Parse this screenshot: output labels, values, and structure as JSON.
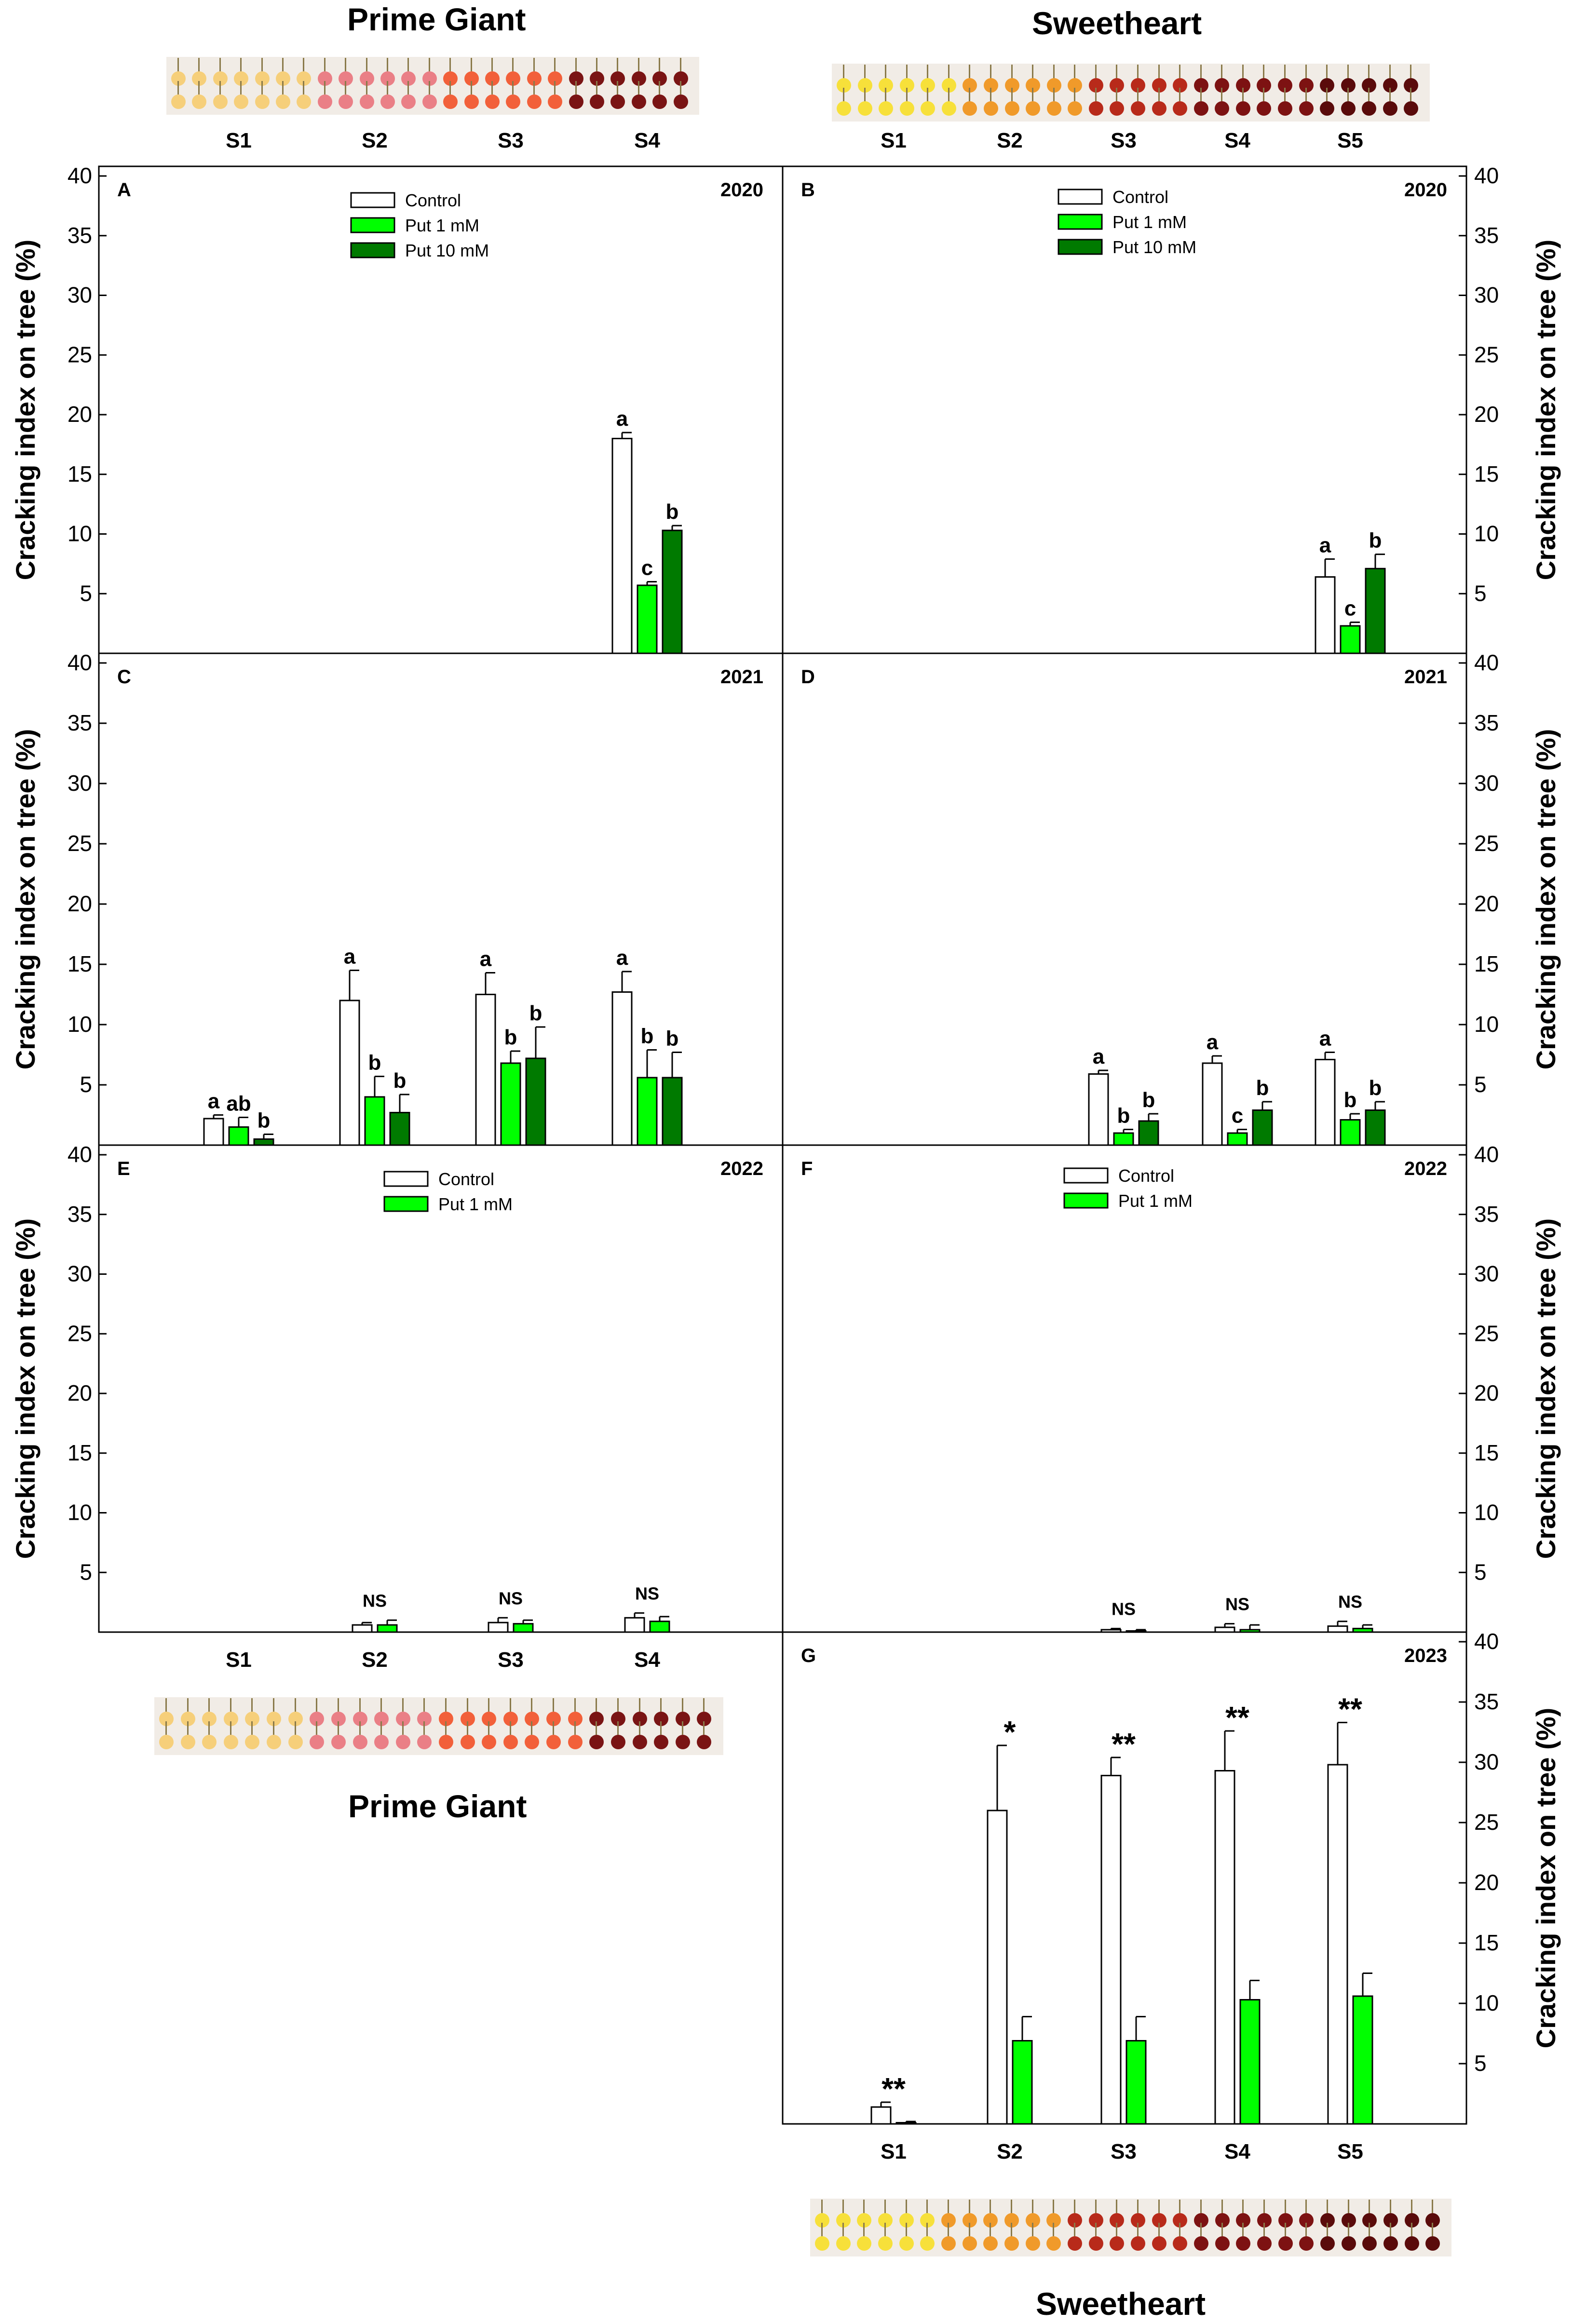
{
  "varieties": {
    "left": "Prime Giant",
    "right": "Sweetheart"
  },
  "y_axis_label": "Cracking index on tree (%)",
  "legend": {
    "control": "Control",
    "put1": "Put 1 mM",
    "put10": "Put 10 mM",
    "put1_spaced": "Put 1  mM"
  },
  "colors": {
    "control": "#ffffff",
    "put1": "#00ff00",
    "put10": "#007a00",
    "axis": "#000000"
  },
  "photo_strips": {
    "prime_giant": [
      "#f6cf7a",
      "#ea7f86",
      "#f2603a",
      "#7a1414"
    ],
    "sweetheart": [
      "#f7e03a",
      "#f09a2a",
      "#b82a1a",
      "#7d1212",
      "#5a0b0b"
    ]
  },
  "chart_data": [
    {
      "panel": "A",
      "year": "2020",
      "type": "bar",
      "variety": "Prime Giant",
      "categories": [
        "S1",
        "S2",
        "S3",
        "S4"
      ],
      "show_xticks": false,
      "ylim": [
        0,
        40
      ],
      "yticks": [
        5,
        10,
        15,
        20,
        25,
        30,
        35,
        40
      ],
      "series": [
        {
          "name": "Control",
          "values": [
            null,
            null,
            null,
            18.0
          ],
          "errors": [
            null,
            null,
            null,
            0.5
          ],
          "labels": [
            "",
            "",
            "",
            "a"
          ]
        },
        {
          "name": "Put 1 mM",
          "values": [
            null,
            null,
            null,
            5.7
          ],
          "errors": [
            null,
            null,
            null,
            0.3
          ],
          "labels": [
            "",
            "",
            "",
            "c"
          ]
        },
        {
          "name": "Put 10 mM",
          "values": [
            null,
            null,
            null,
            10.3
          ],
          "errors": [
            null,
            null,
            null,
            0.4
          ],
          "labels": [
            "",
            "",
            "",
            "b"
          ]
        }
      ]
    },
    {
      "panel": "B",
      "year": "2020",
      "type": "bar",
      "variety": "Sweetheart",
      "categories": [
        "S1",
        "S2",
        "S3",
        "S4",
        "S5"
      ],
      "show_xticks": false,
      "ylim": [
        0,
        40
      ],
      "yticks": [
        5,
        10,
        15,
        20,
        25,
        30,
        35,
        40
      ],
      "series": [
        {
          "name": "Control",
          "values": [
            null,
            null,
            null,
            null,
            6.4
          ],
          "errors": [
            null,
            null,
            null,
            null,
            1.5
          ],
          "labels": [
            "",
            "",
            "",
            "",
            "a"
          ]
        },
        {
          "name": "Put 1 mM",
          "values": [
            null,
            null,
            null,
            null,
            2.3
          ],
          "errors": [
            null,
            null,
            null,
            null,
            0.3
          ],
          "labels": [
            "",
            "",
            "",
            "",
            "c"
          ]
        },
        {
          "name": "Put 10 mM",
          "values": [
            null,
            null,
            null,
            null,
            7.1
          ],
          "errors": [
            null,
            null,
            null,
            null,
            1.2
          ],
          "labels": [
            "",
            "",
            "",
            "",
            "b"
          ]
        }
      ]
    },
    {
      "panel": "C",
      "year": "2021",
      "type": "bar",
      "variety": "Prime Giant",
      "categories": [
        "S1",
        "S2",
        "S3",
        "S4"
      ],
      "show_xticks": false,
      "ylim": [
        0,
        40
      ],
      "yticks": [
        5,
        10,
        15,
        20,
        25,
        30,
        35,
        40
      ],
      "series": [
        {
          "name": "Control",
          "values": [
            2.2,
            12.0,
            12.5,
            12.7
          ],
          "errors": [
            0.3,
            2.5,
            1.8,
            1.7
          ],
          "labels": [
            "a",
            "a",
            "a",
            "a"
          ]
        },
        {
          "name": "Put 1 mM",
          "values": [
            1.5,
            4.0,
            6.8,
            5.6
          ],
          "errors": [
            0.8,
            1.7,
            1.0,
            2.3
          ],
          "labels": [
            "ab",
            "b",
            "b",
            "b"
          ]
        },
        {
          "name": "Put 10 mM",
          "values": [
            0.5,
            2.7,
            7.2,
            5.6
          ],
          "errors": [
            0.4,
            1.5,
            2.6,
            2.1
          ],
          "labels": [
            "b",
            "b",
            "b",
            "b"
          ]
        }
      ]
    },
    {
      "panel": "D",
      "year": "2021",
      "type": "bar",
      "variety": "Sweetheart",
      "categories": [
        "S1",
        "S2",
        "S3",
        "S4",
        "S5"
      ],
      "show_xticks": false,
      "ylim": [
        0,
        40
      ],
      "yticks": [
        5,
        10,
        15,
        20,
        25,
        30,
        35,
        40
      ],
      "series": [
        {
          "name": "Control",
          "values": [
            null,
            null,
            5.9,
            6.8,
            7.1
          ],
          "errors": [
            null,
            null,
            0.3,
            0.6,
            0.6
          ],
          "labels": [
            "",
            "",
            "a",
            "a",
            "a"
          ]
        },
        {
          "name": "Put 1 mM",
          "values": [
            null,
            null,
            1.0,
            1.0,
            2.1
          ],
          "errors": [
            null,
            null,
            0.3,
            0.3,
            0.5
          ],
          "labels": [
            "",
            "",
            "b",
            "c",
            "b"
          ]
        },
        {
          "name": "Put 10 mM",
          "values": [
            null,
            null,
            2.0,
            2.9,
            2.9
          ],
          "errors": [
            null,
            null,
            0.6,
            0.7,
            0.7
          ],
          "labels": [
            "",
            "",
            "b",
            "b",
            "b"
          ]
        }
      ]
    },
    {
      "panel": "E",
      "year": "2022",
      "type": "bar",
      "variety": "Prime Giant",
      "categories": [
        "S1",
        "S2",
        "S3",
        "S4"
      ],
      "show_xticks": true,
      "ylim": [
        0,
        40
      ],
      "yticks": [
        5,
        10,
        15,
        20,
        25,
        30,
        35,
        40
      ],
      "group_labels": [
        "",
        "NS",
        "NS",
        "NS"
      ],
      "series": [
        {
          "name": "Control",
          "values": [
            null,
            0.6,
            0.8,
            1.2
          ],
          "errors": [
            null,
            0.2,
            0.4,
            0.4
          ]
        },
        {
          "name": "Put 1  mM",
          "values": [
            null,
            0.6,
            0.7,
            0.9
          ],
          "errors": [
            null,
            0.4,
            0.3,
            0.4
          ]
        }
      ]
    },
    {
      "panel": "F",
      "year": "2022",
      "type": "bar",
      "variety": "Sweetheart",
      "categories": [
        "S1",
        "S2",
        "S3",
        "S4",
        "S5"
      ],
      "show_xticks": false,
      "ylim": [
        0,
        40
      ],
      "yticks": [
        5,
        10,
        15,
        20,
        25,
        30,
        35,
        40
      ],
      "group_labels": [
        "",
        "",
        "NS",
        "NS",
        "NS"
      ],
      "series": [
        {
          "name": "Control",
          "values": [
            null,
            null,
            0.2,
            0.4,
            0.5
          ],
          "errors": [
            null,
            null,
            0.1,
            0.3,
            0.4
          ]
        },
        {
          "name": "Put 1  mM",
          "values": [
            null,
            null,
            0.1,
            0.2,
            0.3
          ],
          "errors": [
            null,
            null,
            0.1,
            0.4,
            0.3
          ]
        }
      ]
    },
    {
      "panel": "G",
      "year": "2023",
      "type": "bar",
      "variety": "Sweetheart",
      "categories": [
        "S1",
        "S2",
        "S3",
        "S4",
        "S5"
      ],
      "show_xticks": true,
      "ylim": [
        0,
        40
      ],
      "yticks": [
        5,
        10,
        15,
        20,
        25,
        30,
        35,
        40
      ],
      "group_labels": [
        "**",
        "*",
        "**",
        "**",
        "**"
      ],
      "series": [
        {
          "name": "Control",
          "values": [
            1.4,
            26.0,
            28.9,
            29.3,
            29.8
          ],
          "errors": [
            0.4,
            5.4,
            1.5,
            3.3,
            3.5
          ]
        },
        {
          "name": "Put 1 mM",
          "values": [
            0.1,
            6.9,
            6.9,
            10.3,
            10.6
          ],
          "errors": [
            0.1,
            2.0,
            2.0,
            1.6,
            1.9
          ]
        }
      ]
    }
  ]
}
